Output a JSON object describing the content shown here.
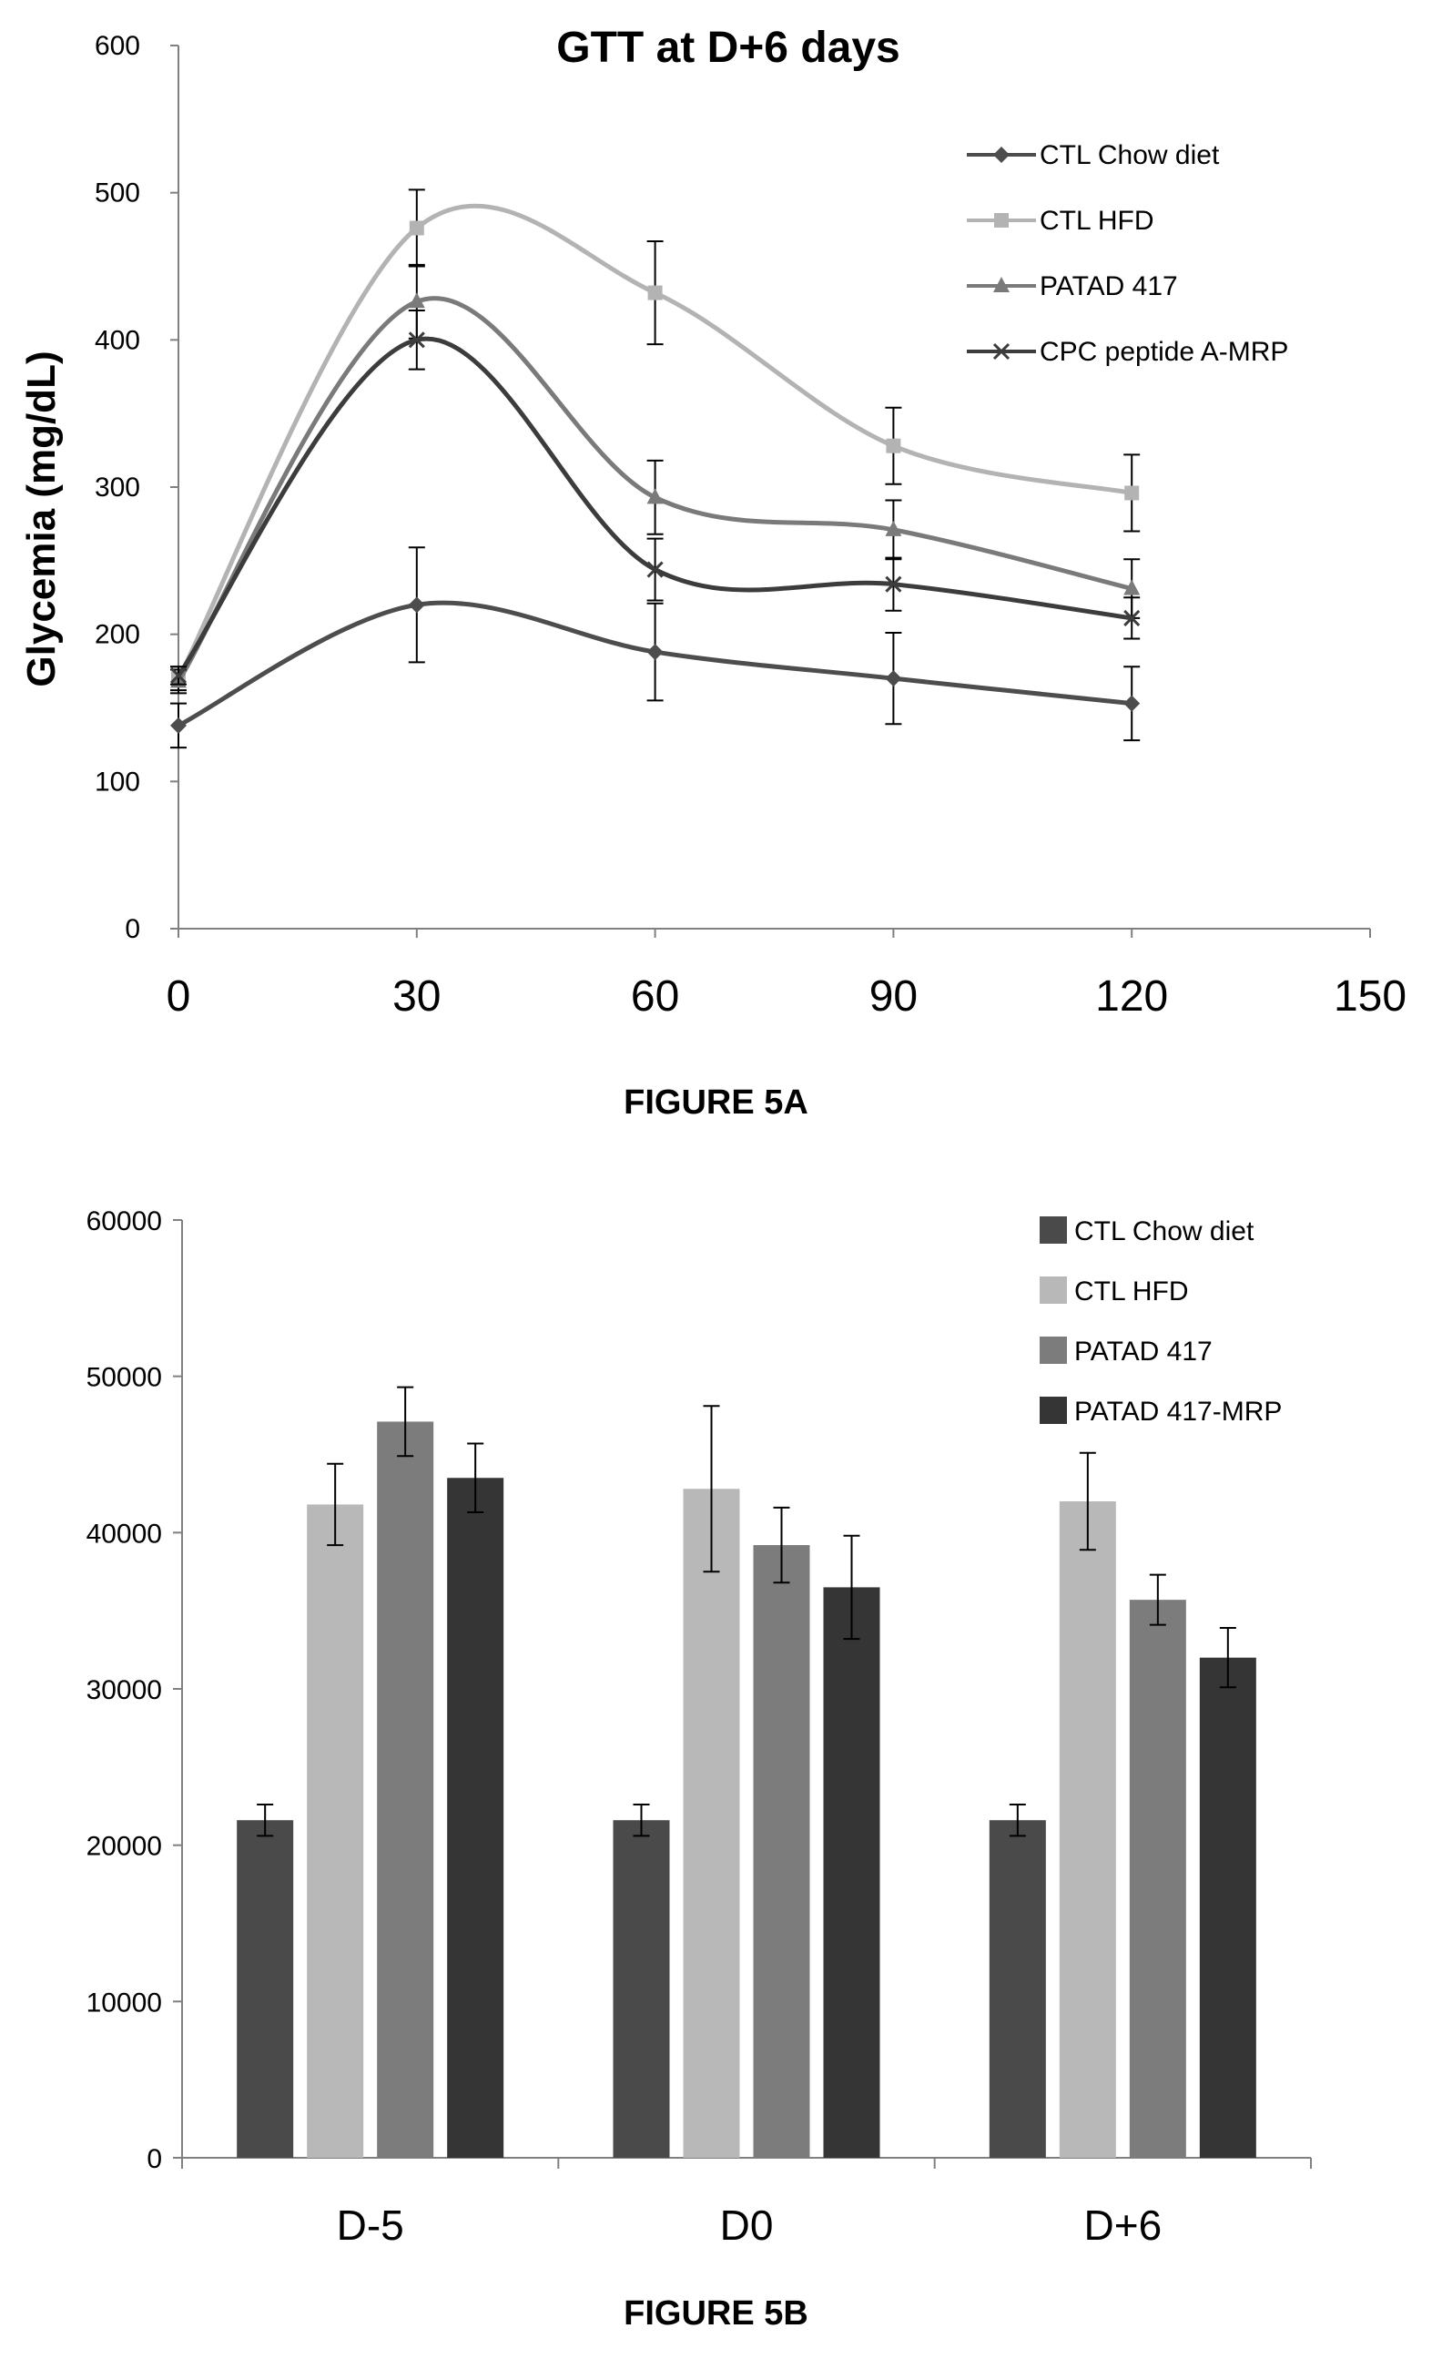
{
  "figures": {
    "caption_a": "FIGURE 5A",
    "caption_b": "FIGURE 5B"
  },
  "chart_data": [
    {
      "type": "line",
      "title": "GTT at D+6 days",
      "xlabel": "",
      "ylabel": "Glycemia (mg/dL)",
      "xlim": [
        0,
        150
      ],
      "ylim": [
        0,
        600
      ],
      "x_ticks": [
        0,
        30,
        60,
        90,
        120,
        150
      ],
      "y_ticks": [
        0,
        100,
        200,
        300,
        400,
        500,
        600
      ],
      "x": [
        0,
        30,
        60,
        90,
        120
      ],
      "smooth": true,
      "grid": false,
      "legend_position": "top-right",
      "series": [
        {
          "name": "CTL Chow diet",
          "marker": "diamond",
          "color": "#4d4d4d",
          "values": [
            138,
            220,
            188,
            170,
            153
          ],
          "errors": [
            15,
            39,
            33,
            31,
            25
          ]
        },
        {
          "name": "CTL HFD",
          "marker": "square",
          "color": "#b3b3b3",
          "values": [
            170,
            476,
            432,
            328,
            296
          ],
          "errors": [
            8,
            26,
            35,
            26,
            26
          ]
        },
        {
          "name": "PATAD 417",
          "marker": "triangle",
          "color": "#7a7a7a",
          "values": [
            168,
            426,
            293,
            271,
            231
          ],
          "errors": [
            8,
            25,
            25,
            20,
            20
          ]
        },
        {
          "name": "CPC peptide A-MRP",
          "marker": "x",
          "color": "#3c3c3c",
          "values": [
            172,
            400,
            244,
            234,
            211
          ],
          "errors": [
            6,
            20,
            21,
            18,
            14
          ]
        }
      ]
    },
    {
      "type": "bar",
      "title": "",
      "xlabel": "",
      "ylabel": "",
      "ylim": [
        0,
        60000
      ],
      "y_ticks": [
        0,
        10000,
        20000,
        30000,
        40000,
        50000,
        60000
      ],
      "categories": [
        "D-5",
        "D0",
        "D+6"
      ],
      "grid": false,
      "legend_position": "top-right",
      "series": [
        {
          "name": "CTL Chow diet",
          "color": "#4a4a4a",
          "values": [
            21600,
            21600,
            21600
          ],
          "errors": [
            1000,
            1000,
            1000
          ]
        },
        {
          "name": "CTL HFD",
          "color": "#b8b8b8",
          "values": [
            41800,
            42800,
            42000
          ],
          "errors": [
            2600,
            5300,
            3100
          ]
        },
        {
          "name": "PATAD 417",
          "color": "#7c7c7c",
          "values": [
            47100,
            39200,
            35700
          ],
          "errors": [
            2200,
            2400,
            1600
          ]
        },
        {
          "name": "PATAD 417-MRP",
          "color": "#353535",
          "values": [
            43500,
            36500,
            32000
          ],
          "errors": [
            2200,
            3300,
            1900
          ]
        }
      ]
    }
  ]
}
